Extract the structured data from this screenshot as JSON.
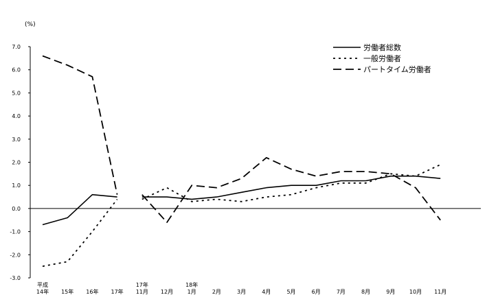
{
  "chart_data": {
    "type": "line",
    "unit_label": "(%)",
    "ylim": [
      -3.0,
      7.0
    ],
    "y_ticks": [
      "7.0",
      "6.0",
      "5.0",
      "4.0",
      "3.0",
      "2.0",
      "1.0",
      "0.0",
      "-1.0",
      "-2.0",
      "-3.0"
    ],
    "categories": [
      [
        "平成",
        "14年"
      ],
      [
        "15年"
      ],
      [
        "16年"
      ],
      [
        "17年"
      ],
      [
        "17年",
        "11月"
      ],
      [
        "12月"
      ],
      [
        "18年",
        "1月"
      ],
      [
        "2月"
      ],
      [
        "3月"
      ],
      [
        "4月"
      ],
      [
        "5月"
      ],
      [
        "6月"
      ],
      [
        "7月"
      ],
      [
        "8月"
      ],
      [
        "9月"
      ],
      [
        "10月"
      ],
      [
        "11月"
      ]
    ],
    "segments": [
      [
        0,
        3
      ],
      [
        4,
        16
      ]
    ],
    "series": [
      {
        "name": "労働者総数",
        "style": "solid",
        "values": [
          -0.7,
          -0.4,
          0.6,
          0.5,
          0.5,
          0.5,
          0.4,
          0.5,
          0.7,
          0.9,
          1.0,
          1.0,
          1.2,
          1.2,
          1.4,
          1.4,
          1.3
        ]
      },
      {
        "name": "一般労働者",
        "style": "dotted",
        "values": [
          -2.5,
          -2.3,
          -1.0,
          0.4,
          0.4,
          0.9,
          0.3,
          0.4,
          0.3,
          0.5,
          0.6,
          0.9,
          1.1,
          1.1,
          1.5,
          1.4,
          1.9
        ]
      },
      {
        "name": "パートタイム労働者",
        "style": "dashed",
        "values": [
          6.6,
          6.2,
          5.7,
          0.6,
          0.6,
          -0.6,
          1.0,
          0.9,
          1.3,
          2.2,
          1.7,
          1.4,
          1.6,
          1.6,
          1.5,
          0.9,
          -0.5
        ]
      }
    ],
    "legend_position": "top-right",
    "grid": false
  }
}
